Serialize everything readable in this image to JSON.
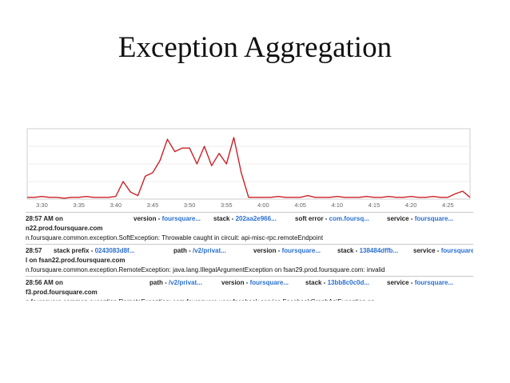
{
  "slide": {
    "title": "Exception Aggregation"
  },
  "chart_data": {
    "type": "line",
    "x_ticks": [
      "3:30",
      "3:35",
      "3:40",
      "3:45",
      "3:50",
      "3:55",
      "4:00",
      "4:05",
      "4:10",
      "4:15",
      "4:20",
      "4:25"
    ],
    "x": [
      "3:28",
      "3:29",
      "3:30",
      "3:31",
      "3:32",
      "3:33",
      "3:34",
      "3:35",
      "3:36",
      "3:37",
      "3:38",
      "3:39",
      "3:40",
      "3:41",
      "3:42",
      "3:43",
      "3:44",
      "3:45",
      "3:46",
      "3:47",
      "3:48",
      "3:49",
      "3:50",
      "3:51",
      "3:52",
      "3:53",
      "3:54",
      "3:55",
      "3:56",
      "3:57",
      "3:58",
      "3:59",
      "4:00",
      "4:01",
      "4:02",
      "4:03",
      "4:04",
      "4:05",
      "4:06",
      "4:07",
      "4:08",
      "4:09",
      "4:10",
      "4:11",
      "4:12",
      "4:13",
      "4:14",
      "4:15",
      "4:16",
      "4:17",
      "4:18",
      "4:19",
      "4:20",
      "4:21",
      "4:22",
      "4:23",
      "4:24",
      "4:25",
      "4:26",
      "4:27",
      "4:28"
    ],
    "values": [
      2,
      2,
      3,
      2,
      2,
      1,
      2,
      2,
      3,
      2,
      2,
      2,
      3,
      20,
      8,
      4,
      26,
      30,
      44,
      68,
      54,
      58,
      58,
      40,
      60,
      38,
      52,
      40,
      70,
      30,
      2,
      2,
      2,
      2,
      3,
      2,
      2,
      2,
      4,
      2,
      2,
      2,
      3,
      2,
      2,
      2,
      3,
      2,
      2,
      3,
      2,
      2,
      3,
      2,
      2,
      3,
      2,
      2,
      6,
      9,
      2
    ],
    "ylim": [
      0,
      80
    ],
    "color": "#cc2027"
  },
  "rows": [
    {
      "line1": [
        {
          "text": "28:57 AM on",
          "kind": "b",
          "left": 0
        },
        {
          "text": "version - ",
          "kind": "b",
          "left": 135
        },
        {
          "text": "foursquare...",
          "kind": "lnk"
        },
        {
          "text": "stack - ",
          "kind": "b",
          "left": 235
        },
        {
          "text": "202aa2e966...",
          "kind": "lnk"
        },
        {
          "text": "soft error - ",
          "kind": "b",
          "left": 337
        },
        {
          "text": "com.foursq...",
          "kind": "lnk"
        },
        {
          "text": "service - ",
          "kind": "b",
          "left": 452
        },
        {
          "text": "foursquare...",
          "kind": "lnk"
        }
      ],
      "line2": "n22.prod.foursquare.com",
      "line3": "n.foursquare.common.exception.SoftException: Throwable caught in circuit: api-misc-rpc.remoteEndpoint"
    },
    {
      "line1": [
        {
          "text": "28:57",
          "kind": "b",
          "left": 0
        },
        {
          "text": "stack prefix - ",
          "kind": "b",
          "left": 35
        },
        {
          "text": "0243083d8f...",
          "kind": "lnk"
        },
        {
          "text": "path - ",
          "kind": "b",
          "left": 185
        },
        {
          "text": "/v2/privat...",
          "kind": "lnk"
        },
        {
          "text": "version - ",
          "kind": "b",
          "left": 285
        },
        {
          "text": "foursquare...",
          "kind": "lnk"
        },
        {
          "text": "stack - ",
          "kind": "b",
          "left": 390
        },
        {
          "text": "138484dffb...",
          "kind": "lnk"
        },
        {
          "text": "service - ",
          "kind": "b",
          "left": 485
        },
        {
          "text": "foursquare...",
          "kind": "lnk"
        }
      ],
      "line2": "l on fsan22.prod.foursquare.com",
      "line3": "n.foursquare.common.exception.RemoteException: java.lang.IllegalArgumentException on fsan29.prod.foursquare.com: invalid"
    },
    {
      "line1": [
        {
          "text": "28:56 AM on",
          "kind": "b",
          "left": 0
        },
        {
          "text": "path - ",
          "kind": "b",
          "left": 155
        },
        {
          "text": "/v2/privat...",
          "kind": "lnk"
        },
        {
          "text": "version - ",
          "kind": "b",
          "left": 245
        },
        {
          "text": "foursquare...",
          "kind": "lnk"
        },
        {
          "text": "stack - ",
          "kind": "b",
          "left": 350
        },
        {
          "text": "13bb8c0c0d...",
          "kind": "lnk"
        },
        {
          "text": "service - ",
          "kind": "b",
          "left": 452
        },
        {
          "text": "foursquare...",
          "kind": "lnk"
        }
      ],
      "line2": "f3.prod.foursquare.com",
      "line3": "n.foursquare.common.exception.RemoteException: com.foursquare.user.facebook.service.FacebookGraphApiException on"
    }
  ]
}
